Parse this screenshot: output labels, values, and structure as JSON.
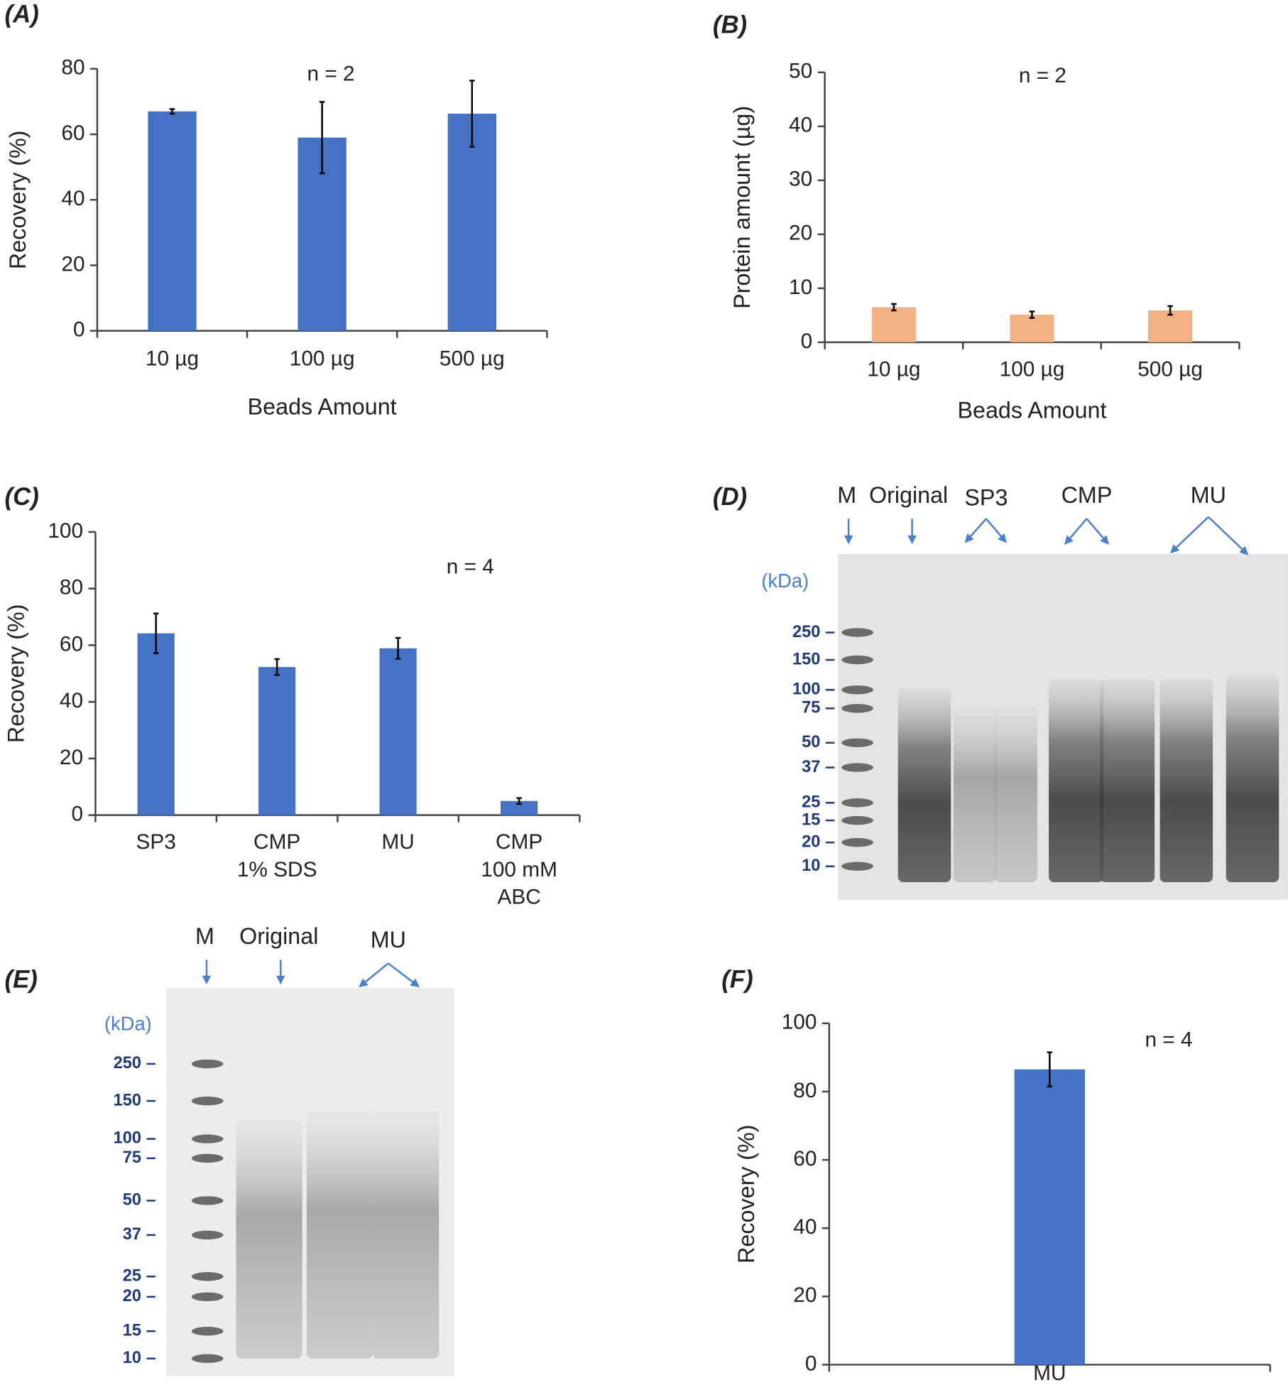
{
  "chart_data": [
    {
      "type": "bar",
      "label": "(A)",
      "annotation": "n = 2",
      "xlabel": "Beads Amount",
      "ylabel": "Recovery (%)",
      "categories": [
        "10  µg",
        "100 µg",
        "500 µg"
      ],
      "values": [
        67,
        59,
        66.3
      ],
      "errors": [
        0.7,
        10.9,
        10.1
      ],
      "color": "#4472c4",
      "ylim": [
        0,
        80
      ],
      "yticks": [
        0,
        20,
        40,
        60,
        80
      ]
    },
    {
      "type": "bar",
      "label": "(B)",
      "annotation": "n = 2",
      "xlabel": "Beads Amount",
      "ylabel": "Protein amount (µg)",
      "categories": [
        "10  µg",
        "100 µg",
        "500 µg"
      ],
      "values": [
        6.5,
        5.1,
        5.9
      ],
      "errors": [
        0.6,
        0.6,
        0.8
      ],
      "color": "#f4b183",
      "ylim": [
        0,
        50
      ],
      "yticks": [
        0,
        10,
        20,
        30,
        40,
        50
      ]
    },
    {
      "type": "bar",
      "label": "(C)",
      "annotation": "n = 4",
      "ylabel": "Recovery (%)",
      "categories": [
        "SP3",
        [
          "CMP",
          "1% SDS"
        ],
        "MU",
        [
          "CMP",
          "100 mM",
          "ABC"
        ]
      ],
      "values": [
        64.2,
        52.3,
        58.9,
        5
      ],
      "errors": [
        7,
        2.8,
        3.7,
        1
      ],
      "color": "#4472c4",
      "ylim": [
        0,
        100
      ],
      "yticks": [
        0,
        20,
        40,
        60,
        80,
        100
      ]
    },
    {
      "type": "bar",
      "label": "(F)",
      "annotation": "n = 4",
      "ylabel": "Recovery (%)",
      "categories": [
        "MU"
      ],
      "values": [
        86.5
      ],
      "errors": [
        5
      ],
      "color": "#4472c4",
      "ylim": [
        0,
        100
      ],
      "yticks": [
        0,
        20,
        40,
        60,
        80,
        100
      ]
    }
  ],
  "gels": [
    {
      "label": "(D)",
      "unit": "(kDa)",
      "lanes": [
        "M",
        "Original",
        "SP3",
        "CMP",
        "MU"
      ],
      "markers": [
        "250",
        "150",
        "100",
        "75",
        "50",
        "37",
        "25",
        "15",
        "20",
        "10"
      ]
    },
    {
      "label": "(E)",
      "unit": "(kDa)",
      "lanes": [
        "M",
        "Original",
        "MU"
      ],
      "markers": [
        "250",
        "150",
        "100",
        "75",
        "50",
        "37",
        "25",
        "20",
        "15",
        "10"
      ]
    }
  ]
}
